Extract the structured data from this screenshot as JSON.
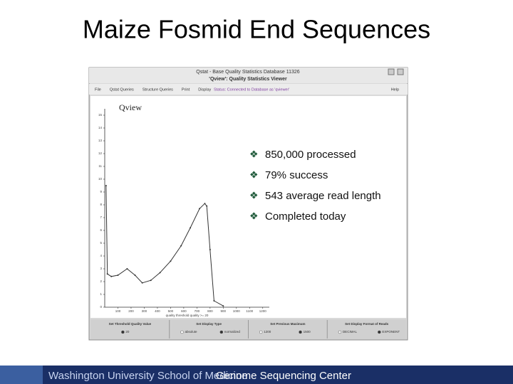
{
  "slide": {
    "title": "Maize Fosmid End Sequences",
    "bullets": [
      "850,000 processed",
      "79% success",
      "543 average read length",
      "Completed today"
    ],
    "footer": {
      "left": "Washington University School of Medicine",
      "right": "Genome Sequencing Center"
    }
  },
  "screenshot": {
    "window_title": "Qstat - Base Quality Statistics Database 11326",
    "subtitle": "'Qview': Quality Statistics Viewer",
    "menu": [
      "File",
      "Qstat Queries",
      "Structure Queries",
      "Print",
      "Display"
    ],
    "status": "Status: Connected to Database as 'qviewer'",
    "help": "Help",
    "panel_label": "Qview",
    "plot": {
      "x": [
        10,
        20,
        50,
        100,
        170,
        230,
        285,
        350,
        420,
        500,
        580,
        650,
        720,
        760,
        775,
        800,
        830,
        900
      ],
      "values": [
        9.5,
        2.6,
        2.4,
        2.5,
        3.0,
        2.5,
        1.9,
        2.1,
        2.7,
        3.6,
        4.8,
        6.2,
        7.7,
        8.1,
        7.9,
        4.5,
        0.5,
        0.1
      ],
      "xlim": [
        0,
        1250
      ],
      "ylim": [
        0,
        15.5
      ],
      "xticks": [
        100,
        200,
        300,
        400,
        500,
        600,
        700,
        800,
        900,
        1000,
        1100,
        1200
      ],
      "yticks": [
        0,
        1,
        2,
        3,
        4,
        5,
        6,
        7,
        8,
        9,
        10,
        11,
        12,
        13,
        14,
        15
      ],
      "x_label": "quality threshold quality >= 20"
    },
    "controls": [
      {
        "title": "Set Threshold Quality Value",
        "options": [
          "20"
        ]
      },
      {
        "title": "Set Display Type",
        "options": [
          "absolute",
          "normalized"
        ]
      },
      {
        "title": "Set Previous Maximum",
        "options": [
          "1200",
          "1500"
        ]
      },
      {
        "title": "Set Display Format of Reads",
        "options": [
          "DECIMAL",
          "EXPONENT"
        ]
      }
    ]
  }
}
